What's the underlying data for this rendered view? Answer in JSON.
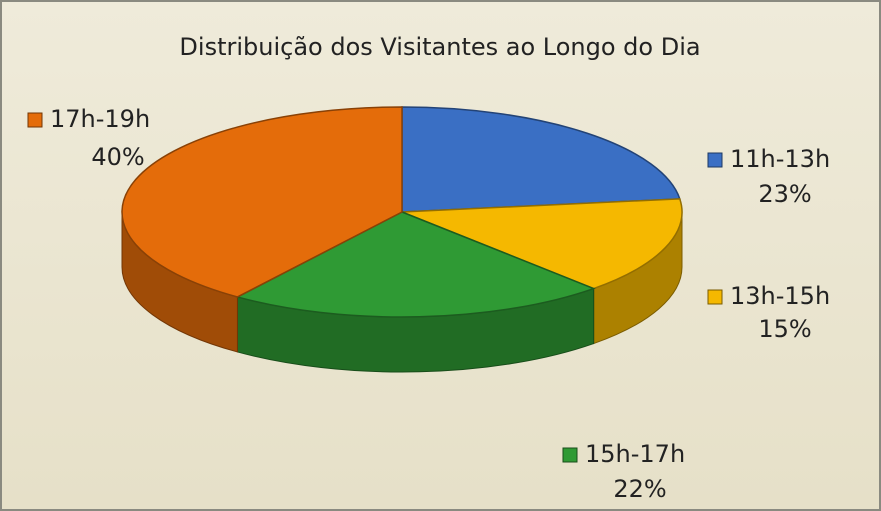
{
  "chart_data": {
    "type": "pie",
    "title": "Distribuição dos Visitantes ao Longo do Dia",
    "categories": [
      "11h-13h",
      "13h-15h",
      "15h-17h",
      "17h-19h"
    ],
    "values": [
      23,
      15,
      22,
      40
    ],
    "value_labels": [
      "23%",
      "15%",
      "22%",
      "40%"
    ],
    "colors": [
      "#3a6fc4",
      "#f5b800",
      "#2f9a34",
      "#e46c0a"
    ]
  }
}
